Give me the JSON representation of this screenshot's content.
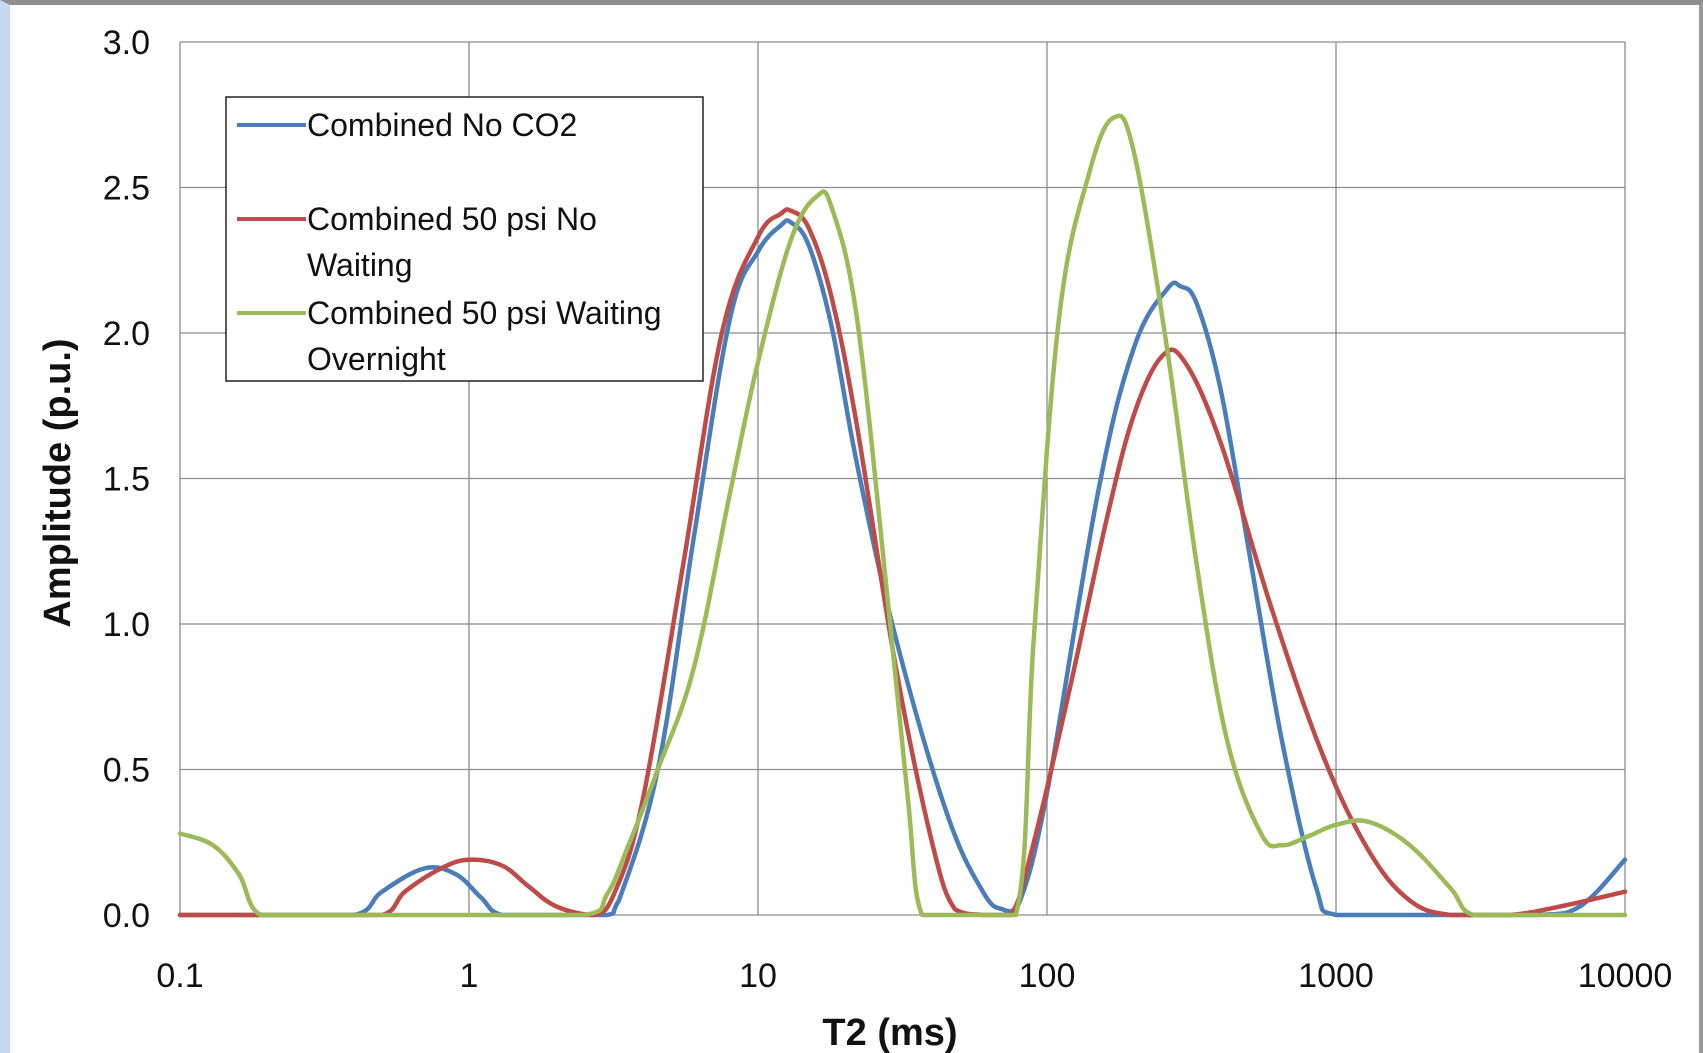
{
  "chart_data": {
    "type": "line",
    "title": "",
    "xlabel": "T2 (ms)",
    "ylabel": "Amplitude (p.u.)",
    "x_scale": "log",
    "xlim": [
      0.1,
      10000
    ],
    "ylim": [
      0,
      3.0
    ],
    "x_ticks": [
      "0.1",
      "1",
      "10",
      "100",
      "1000",
      "10000"
    ],
    "y_ticks": [
      "0.0",
      "0.5",
      "1.0",
      "1.5",
      "2.0",
      "2.5",
      "3.0"
    ],
    "grid": true,
    "legend_position": "top-left",
    "series": [
      {
        "name": "Combined No CO2",
        "color": "#4a7ebb",
        "x": [
          0.1,
          0.2,
          0.4,
          0.5,
          0.7,
          0.9,
          1.1,
          1.3,
          2.0,
          3.0,
          3.3,
          4.5,
          6.0,
          8.0,
          10.0,
          12.0,
          13.0,
          15.0,
          18.0,
          22.0,
          30.0,
          45.0,
          60.0,
          70.0,
          80.0,
          100.0,
          150.0,
          200.0,
          260.0,
          290.0,
          330.0,
          400.0,
          500.0,
          650.0,
          850.0,
          1000.0,
          2000.0,
          5000.0,
          7000.0,
          10000.0
        ],
        "y": [
          0.0,
          0.0,
          0.0,
          0.08,
          0.16,
          0.14,
          0.06,
          0.0,
          0.0,
          0.0,
          0.05,
          0.5,
          1.3,
          2.05,
          2.28,
          2.37,
          2.38,
          2.3,
          2.02,
          1.55,
          0.95,
          0.35,
          0.08,
          0.02,
          0.04,
          0.42,
          1.45,
          1.95,
          2.15,
          2.16,
          2.1,
          1.8,
          1.25,
          0.6,
          0.1,
          0.0,
          0.0,
          0.0,
          0.03,
          0.19
        ]
      },
      {
        "name": "Combined 50 psi No Waiting",
        "color": "#be4b48",
        "x": [
          0.1,
          0.3,
          0.5,
          0.6,
          0.8,
          1.0,
          1.3,
          1.6,
          2.0,
          2.7,
          3.2,
          4.0,
          5.5,
          7.5,
          10.0,
          12.0,
          13.0,
          15.0,
          18.0,
          22.0,
          30.0,
          40.0,
          48.0,
          60.0,
          75.0,
          90.0,
          120.0,
          160.0,
          200.0,
          250.0,
          300.0,
          400.0,
          600.0,
          900.0,
          1300.0,
          1800.0,
          2500.0,
          4000.0,
          6000.0,
          10000.0
        ],
        "y": [
          0.0,
          0.0,
          0.0,
          0.08,
          0.16,
          0.19,
          0.17,
          0.1,
          0.03,
          0.0,
          0.08,
          0.4,
          1.2,
          2.0,
          2.33,
          2.41,
          2.42,
          2.36,
          2.12,
          1.68,
          0.85,
          0.25,
          0.02,
          0.0,
          0.0,
          0.25,
          0.78,
          1.35,
          1.72,
          1.92,
          1.9,
          1.62,
          1.05,
          0.55,
          0.22,
          0.05,
          0.0,
          0.0,
          0.03,
          0.08
        ]
      },
      {
        "name": "Combined 50 psi Waiting Overnight",
        "color": "#9bbb59",
        "x": [
          0.1,
          0.13,
          0.16,
          0.19,
          0.3,
          1.0,
          2.5,
          3.0,
          3.5,
          4.5,
          6.0,
          8.0,
          10.0,
          13.0,
          16.0,
          18.0,
          22.0,
          28.0,
          33.0,
          37.0,
          50.0,
          78.0,
          90.0,
          110.0,
          140.0,
          170.0,
          200.0,
          260.0,
          330.0,
          420.0,
          550.0,
          650.0,
          800.0,
          1000.0,
          1300.0,
          1800.0,
          2500.0,
          3000.0,
          5000.0,
          10000.0
        ],
        "y": [
          0.28,
          0.24,
          0.14,
          0.0,
          0.0,
          0.0,
          0.0,
          0.07,
          0.22,
          0.5,
          0.85,
          1.45,
          1.9,
          2.32,
          2.47,
          2.43,
          2.05,
          1.1,
          0.4,
          0.0,
          0.0,
          0.0,
          0.95,
          2.05,
          2.55,
          2.74,
          2.62,
          1.95,
          1.2,
          0.6,
          0.28,
          0.24,
          0.27,
          0.31,
          0.32,
          0.24,
          0.09,
          0.0,
          0.0,
          0.0
        ]
      }
    ]
  },
  "legend": {
    "entries": [
      {
        "line1": "Combined No CO2",
        "line2": ""
      },
      {
        "line1": "Combined 50 psi No",
        "line2": "Waiting"
      },
      {
        "line1": "Combined 50 psi Waiting",
        "line2": "Overnight"
      }
    ]
  }
}
